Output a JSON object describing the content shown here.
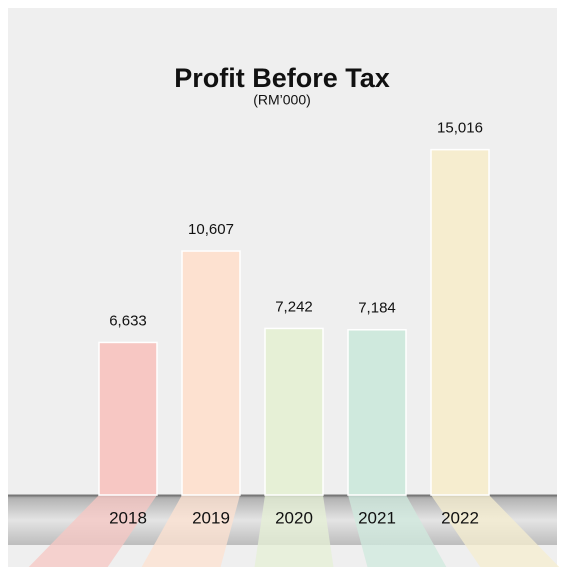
{
  "chart_data": {
    "type": "bar",
    "title": "Profit Before Tax",
    "subtitle": "(RM’000)",
    "categories": [
      "2018",
      "2019",
      "2020",
      "2021",
      "2022"
    ],
    "values": [
      6633,
      10607,
      7242,
      7184,
      15016
    ],
    "value_labels": [
      "6,633",
      "10,607",
      "7,242",
      "7,184",
      "15,016"
    ],
    "colors": [
      "#f7c7c3",
      "#fde1d0",
      "#e6f0d6",
      "#cfe9dd",
      "#f6edcf"
    ]
  }
}
